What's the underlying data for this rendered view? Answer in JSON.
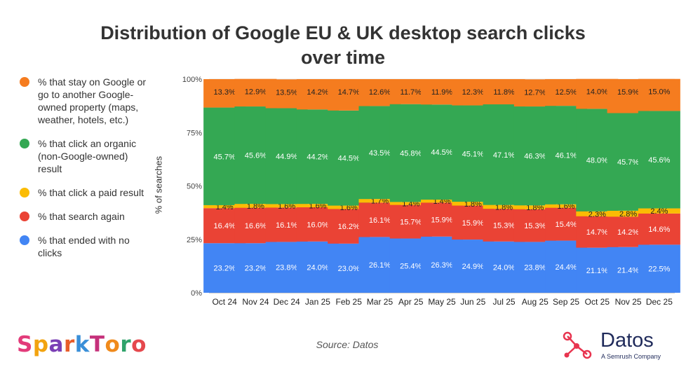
{
  "title_line1": "Distribution of Google EU & UK desktop search clicks",
  "title_line2": "over time",
  "legend": [
    {
      "label": "% that stay on Google or go to another Google-owned property (maps, weather, hotels, etc.)",
      "color": "#f57c1f"
    },
    {
      "label": "% that click an organic (non-Google-owned) result",
      "color": "#34a853"
    },
    {
      "label": "% that click a paid result",
      "color": "#fbbc04"
    },
    {
      "label": "% that search again",
      "color": "#ea4335"
    },
    {
      "label": "% that ended with no clicks",
      "color": "#4285f4"
    }
  ],
  "chart_data": {
    "type": "stacked-bar",
    "title": "Distribution of Google EU & UK desktop search clicks over time",
    "ylabel": "% of searches",
    "xlabel": "",
    "ylim": [
      0,
      100
    ],
    "yticks": [
      "0%",
      "25%",
      "50%",
      "75%",
      "100%"
    ],
    "categories": [
      "Oct 24",
      "Nov 24",
      "Dec 24",
      "Jan 25",
      "Feb 25",
      "Mar 25",
      "Apr 25",
      "May 25",
      "Jun 25",
      "Jul 25",
      "Aug 25",
      "Sep 25",
      "Oct 25",
      "Nov 25",
      "Dec 25"
    ],
    "series": [
      {
        "name": "% that ended with no clicks",
        "color": "#4285f4",
        "values": [
          23.2,
          23.2,
          23.8,
          24.0,
          23.0,
          26.1,
          25.4,
          26.3,
          24.9,
          24.0,
          23.8,
          24.4,
          21.1,
          21.4,
          22.5
        ]
      },
      {
        "name": "% that search again",
        "color": "#ea4335",
        "values": [
          16.4,
          16.6,
          16.1,
          16.0,
          16.2,
          16.1,
          15.7,
          15.9,
          15.9,
          15.3,
          15.3,
          15.4,
          14.7,
          14.2,
          14.6
        ]
      },
      {
        "name": "% that click a paid result",
        "color": "#fbbc04",
        "values": [
          1.4,
          1.8,
          1.6,
          1.6,
          1.6,
          1.7,
          1.4,
          1.4,
          1.8,
          1.8,
          1.8,
          1.6,
          2.3,
          2.8,
          2.4
        ]
      },
      {
        "name": "% that click an organic (non-Google-owned) result",
        "color": "#34a853",
        "values": [
          45.7,
          45.6,
          44.9,
          44.2,
          44.5,
          43.5,
          45.8,
          44.5,
          45.1,
          47.1,
          46.3,
          46.1,
          48.0,
          45.7,
          45.6
        ]
      },
      {
        "name": "% that stay on Google or go to another Google-owned property (maps, weather, hotels, etc.)",
        "color": "#f57c1f",
        "values": [
          13.3,
          12.9,
          13.5,
          14.2,
          14.7,
          12.6,
          11.7,
          11.9,
          12.3,
          11.8,
          12.7,
          12.5,
          14.0,
          15.9,
          15.0
        ]
      }
    ]
  },
  "source": "Source: Datos",
  "brand_left": "SparkToro",
  "brand_right_name": "Datos",
  "brand_right_sub": "A Semrush Company"
}
